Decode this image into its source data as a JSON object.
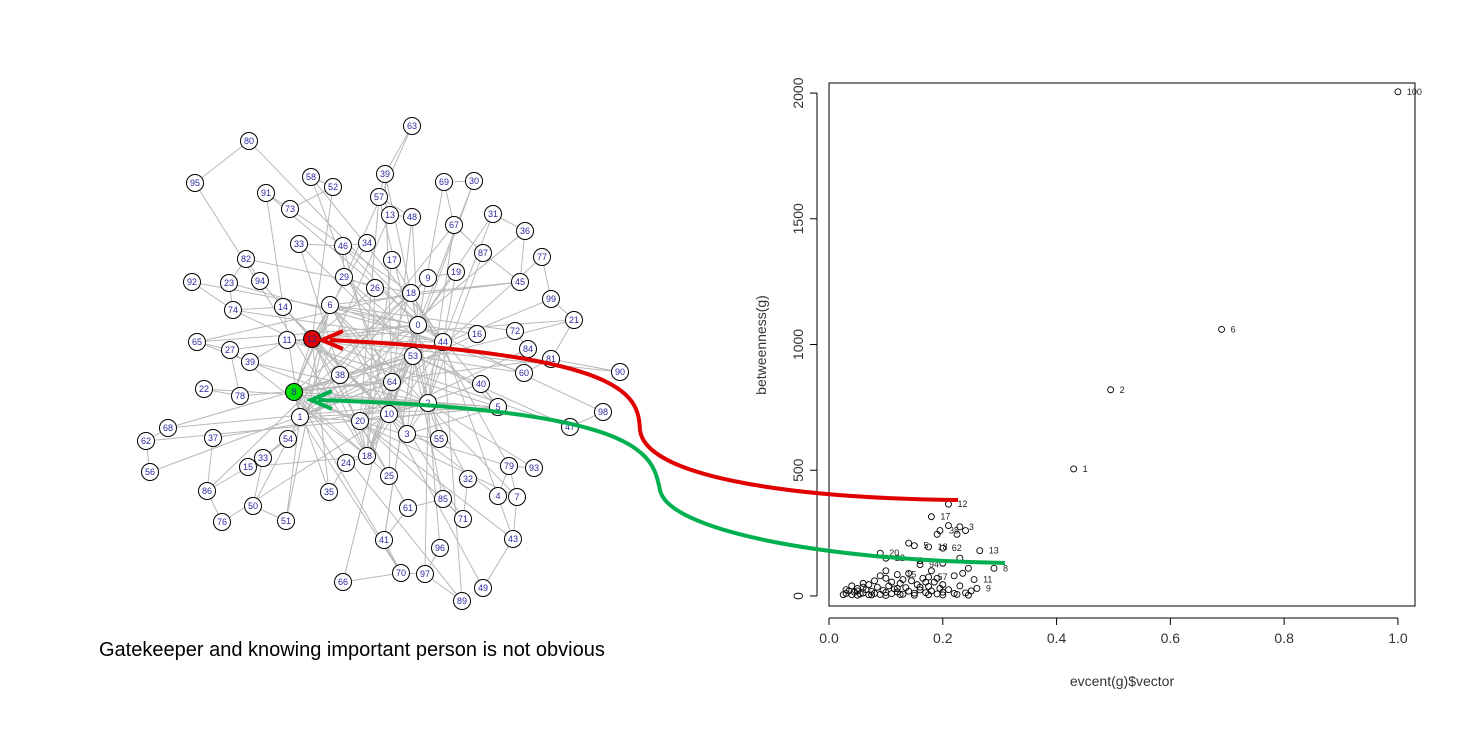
{
  "caption": "Gatekeeper and knowing important person is not obvious",
  "colors": {
    "highlight_red": "#e00000",
    "highlight_green": "#00b050",
    "node_red": "#e00000",
    "node_green": "#00e000"
  },
  "network": {
    "node_labels": [
      "63",
      "80",
      "95",
      "58",
      "52",
      "39",
      "69",
      "30",
      "91",
      "73",
      "57",
      "13",
      "48",
      "67",
      "31",
      "36",
      "33",
      "46",
      "34",
      "17",
      "87",
      "77",
      "82",
      "29",
      "26",
      "9",
      "19",
      "45",
      "92",
      "23",
      "94",
      "18",
      "99",
      "74",
      "14",
      "6",
      "21",
      "0",
      "16",
      "72",
      "65",
      "11",
      "12",
      "27",
      "44",
      "84",
      "39",
      "53",
      "81",
      "90",
      "38",
      "22",
      "8",
      "64",
      "40",
      "60",
      "78",
      "1",
      "2",
      "5",
      "68",
      "98",
      "37",
      "20",
      "10",
      "3",
      "55",
      "47",
      "62",
      "54",
      "33",
      "18",
      "24",
      "79",
      "93",
      "56",
      "15",
      "32",
      "86",
      "35",
      "25",
      "4",
      "7",
      "85",
      "61",
      "50",
      "76",
      "51",
      "71",
      "41",
      "96",
      "43",
      "66",
      "70",
      "97",
      "49",
      "89"
    ],
    "red_node": "12",
    "green_node": "8"
  },
  "chart_data": {
    "type": "scatter",
    "xlabel": "evcent(g)$vector",
    "ylabel": "betweenness(g)",
    "xlim": [
      0.0,
      1.03
    ],
    "ylim": [
      -40,
      2040
    ],
    "xticks": [
      "0.0",
      "0.2",
      "0.4",
      "0.6",
      "0.8",
      "1.0"
    ],
    "yticks": [
      "0",
      "500",
      "1000",
      "1500",
      "2000"
    ],
    "labeled_points": [
      {
        "x": 1.0,
        "y": 2005,
        "label": "100"
      },
      {
        "x": 0.69,
        "y": 1060,
        "label": "6"
      },
      {
        "x": 0.495,
        "y": 820,
        "label": "2"
      },
      {
        "x": 0.43,
        "y": 505,
        "label": "1"
      },
      {
        "x": 0.21,
        "y": 365,
        "label": "12"
      },
      {
        "x": 0.18,
        "y": 315,
        "label": "17"
      },
      {
        "x": 0.23,
        "y": 275,
        "label": "3"
      },
      {
        "x": 0.265,
        "y": 180,
        "label": "13"
      },
      {
        "x": 0.29,
        "y": 110,
        "label": "8"
      },
      {
        "x": 0.09,
        "y": 170,
        "label": "20"
      },
      {
        "x": 0.1,
        "y": 150,
        "label": "22"
      },
      {
        "x": 0.16,
        "y": 125,
        "label": "94"
      },
      {
        "x": 0.12,
        "y": 85,
        "label": "15"
      },
      {
        "x": 0.175,
        "y": 75,
        "label": "57"
      },
      {
        "x": 0.255,
        "y": 65,
        "label": "11"
      },
      {
        "x": 0.26,
        "y": 30,
        "label": "9"
      },
      {
        "x": 0.15,
        "y": 200,
        "label": "5"
      },
      {
        "x": 0.175,
        "y": 195,
        "label": "18"
      },
      {
        "x": 0.2,
        "y": 190,
        "label": "62"
      },
      {
        "x": 0.195,
        "y": 260,
        "label": "35"
      }
    ],
    "points": [
      [
        0.03,
        10
      ],
      [
        0.035,
        20
      ],
      [
        0.04,
        5
      ],
      [
        0.045,
        15
      ],
      [
        0.05,
        30
      ],
      [
        0.055,
        8
      ],
      [
        0.06,
        12
      ],
      [
        0.065,
        25
      ],
      [
        0.07,
        5
      ],
      [
        0.075,
        18
      ],
      [
        0.08,
        10
      ],
      [
        0.085,
        35
      ],
      [
        0.09,
        6
      ],
      [
        0.095,
        22
      ],
      [
        0.1,
        14
      ],
      [
        0.105,
        40
      ],
      [
        0.11,
        9
      ],
      [
        0.115,
        28
      ],
      [
        0.12,
        16
      ],
      [
        0.125,
        50
      ],
      [
        0.13,
        7
      ],
      [
        0.135,
        33
      ],
      [
        0.14,
        19
      ],
      [
        0.145,
        60
      ],
      [
        0.15,
        11
      ],
      [
        0.155,
        45
      ],
      [
        0.16,
        24
      ],
      [
        0.165,
        70
      ],
      [
        0.17,
        13
      ],
      [
        0.175,
        38
      ],
      [
        0.18,
        20
      ],
      [
        0.185,
        55
      ],
      [
        0.19,
        8
      ],
      [
        0.195,
        30
      ],
      [
        0.2,
        15
      ],
      [
        0.21,
        25
      ],
      [
        0.22,
        10
      ],
      [
        0.23,
        40
      ],
      [
        0.24,
        12
      ],
      [
        0.25,
        20
      ],
      [
        0.04,
        40
      ],
      [
        0.06,
        50
      ],
      [
        0.08,
        60
      ],
      [
        0.1,
        70
      ],
      [
        0.12,
        30
      ],
      [
        0.14,
        90
      ],
      [
        0.16,
        35
      ],
      [
        0.18,
        100
      ],
      [
        0.2,
        45
      ],
      [
        0.22,
        80
      ],
      [
        0.025,
        5
      ],
      [
        0.05,
        3
      ],
      [
        0.075,
        4
      ],
      [
        0.1,
        2
      ],
      [
        0.125,
        6
      ],
      [
        0.15,
        3
      ],
      [
        0.175,
        5
      ],
      [
        0.2,
        4
      ],
      [
        0.225,
        6
      ],
      [
        0.245,
        3
      ],
      [
        0.07,
        45
      ],
      [
        0.11,
        55
      ],
      [
        0.13,
        65
      ],
      [
        0.17,
        55
      ],
      [
        0.19,
        70
      ],
      [
        0.14,
        210
      ],
      [
        0.21,
        280
      ],
      [
        0.19,
        245
      ],
      [
        0.16,
        140
      ],
      [
        0.2,
        130
      ],
      [
        0.225,
        245
      ],
      [
        0.24,
        260
      ],
      [
        0.23,
        150
      ],
      [
        0.235,
        90
      ],
      [
        0.245,
        110
      ],
      [
        0.1,
        100
      ],
      [
        0.09,
        80
      ],
      [
        0.06,
        35
      ],
      [
        0.05,
        20
      ],
      [
        0.03,
        25
      ]
    ]
  }
}
